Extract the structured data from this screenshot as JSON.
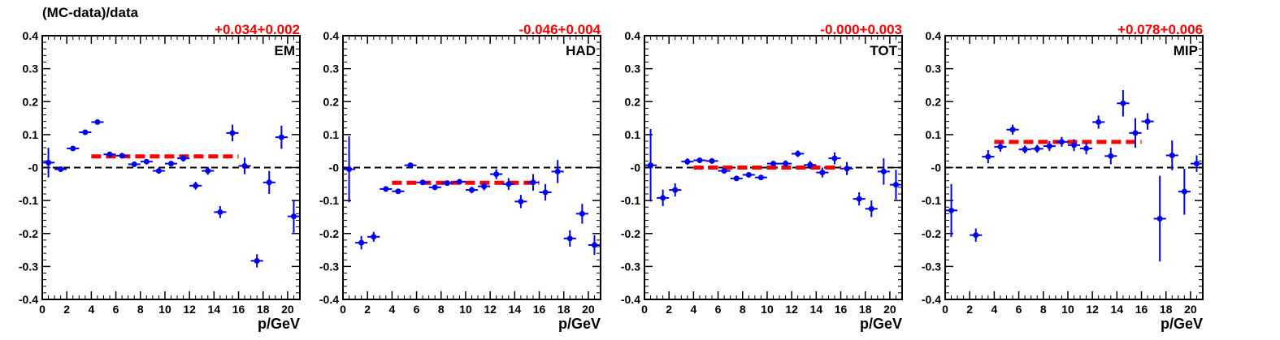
{
  "figure": {
    "ylabel": "(MC-data)/data"
  },
  "chart_data": [
    {
      "type": "scatter",
      "panel_label": "EM",
      "fit_text": "+0.034+0.002",
      "xlabel": "p/GeV",
      "ylabel": "(MC-data)/data",
      "xlim": [
        0,
        21
      ],
      "ylim": [
        -0.4,
        0.4
      ],
      "xticks": [
        0,
        2,
        4,
        6,
        8,
        10,
        12,
        14,
        16,
        18,
        20
      ],
      "yticks": [
        -0.4,
        -0.3,
        -0.2,
        -0.1,
        0,
        0.1,
        0.2,
        0.3,
        0.4
      ],
      "ytick_labels": [
        "-0.4",
        "-0.3",
        "-0.2",
        "-0.1",
        "-0",
        "0.1",
        "0.2",
        "0.3",
        "0.4"
      ],
      "reference_line": 0,
      "fit": {
        "value": 0.034,
        "x_range": [
          4,
          16
        ]
      },
      "points": [
        {
          "x": 0.5,
          "y": 0.015,
          "err": 0.045
        },
        {
          "x": 1.5,
          "y": -0.005,
          "err": 0.008
        },
        {
          "x": 2.5,
          "y": 0.058,
          "err": 0.006
        },
        {
          "x": 3.5,
          "y": 0.107,
          "err": 0.005
        },
        {
          "x": 4.5,
          "y": 0.138,
          "err": 0.004
        },
        {
          "x": 5.5,
          "y": 0.04,
          "err": 0.004
        },
        {
          "x": 6.5,
          "y": 0.036,
          "err": 0.004
        },
        {
          "x": 7.5,
          "y": 0.01,
          "err": 0.005
        },
        {
          "x": 8.5,
          "y": 0.018,
          "err": 0.005
        },
        {
          "x": 9.5,
          "y": -0.01,
          "err": 0.006
        },
        {
          "x": 10.5,
          "y": 0.012,
          "err": 0.008
        },
        {
          "x": 11.5,
          "y": 0.028,
          "err": 0.01
        },
        {
          "x": 12.5,
          "y": -0.055,
          "err": 0.012
        },
        {
          "x": 13.5,
          "y": -0.01,
          "err": 0.012
        },
        {
          "x": 14.5,
          "y": -0.135,
          "err": 0.018
        },
        {
          "x": 15.5,
          "y": 0.105,
          "err": 0.025
        },
        {
          "x": 16.5,
          "y": 0.005,
          "err": 0.025
        },
        {
          "x": 17.5,
          "y": -0.283,
          "err": 0.02
        },
        {
          "x": 18.5,
          "y": -0.045,
          "err": 0.035
        },
        {
          "x": 19.5,
          "y": 0.092,
          "err": 0.035
        },
        {
          "x": 20.5,
          "y": -0.148,
          "err": 0.05
        }
      ]
    },
    {
      "type": "scatter",
      "panel_label": "HAD",
      "fit_text": "-0.046+0.004",
      "xlabel": "p/GeV",
      "ylabel": "(MC-data)/data",
      "xlim": [
        0,
        21
      ],
      "ylim": [
        -0.4,
        0.4
      ],
      "xticks": [
        0,
        2,
        4,
        6,
        8,
        10,
        12,
        14,
        16,
        18,
        20
      ],
      "yticks": [
        -0.4,
        -0.3,
        -0.2,
        -0.1,
        0,
        0.1,
        0.2,
        0.3,
        0.4
      ],
      "ytick_labels": [
        "-0.4",
        "-0.3",
        "-0.2",
        "-0.1",
        "-0",
        "0.1",
        "0.2",
        "0.3",
        "0.4"
      ],
      "reference_line": 0,
      "fit": {
        "value": -0.046,
        "x_range": [
          4,
          16
        ]
      },
      "points": [
        {
          "x": 0.5,
          "y": -0.005,
          "err": 0.1
        },
        {
          "x": 1.5,
          "y": -0.228,
          "err": 0.02
        },
        {
          "x": 2.5,
          "y": -0.21,
          "err": 0.015
        },
        {
          "x": 3.5,
          "y": -0.065,
          "err": 0.008
        },
        {
          "x": 4.5,
          "y": -0.072,
          "err": 0.007
        },
        {
          "x": 5.5,
          "y": 0.007,
          "err": 0.005
        },
        {
          "x": 6.5,
          "y": -0.045,
          "err": 0.006
        },
        {
          "x": 7.5,
          "y": -0.06,
          "err": 0.006
        },
        {
          "x": 8.5,
          "y": -0.047,
          "err": 0.007
        },
        {
          "x": 9.5,
          "y": -0.043,
          "err": 0.008
        },
        {
          "x": 10.5,
          "y": -0.068,
          "err": 0.01
        },
        {
          "x": 11.5,
          "y": -0.057,
          "err": 0.012
        },
        {
          "x": 12.5,
          "y": -0.02,
          "err": 0.015
        },
        {
          "x": 13.5,
          "y": -0.05,
          "err": 0.018
        },
        {
          "x": 14.5,
          "y": -0.103,
          "err": 0.02
        },
        {
          "x": 15.5,
          "y": -0.045,
          "err": 0.025
        },
        {
          "x": 16.5,
          "y": -0.075,
          "err": 0.025
        },
        {
          "x": 17.5,
          "y": -0.012,
          "err": 0.035
        },
        {
          "x": 18.5,
          "y": -0.215,
          "err": 0.025
        },
        {
          "x": 19.5,
          "y": -0.14,
          "err": 0.03
        },
        {
          "x": 20.5,
          "y": -0.235,
          "err": 0.03
        }
      ]
    },
    {
      "type": "scatter",
      "panel_label": "TOT",
      "fit_text": "-0.000+0.003",
      "xlabel": "p/GeV",
      "ylabel": "(MC-data)/data",
      "xlim": [
        0,
        21
      ],
      "ylim": [
        -0.4,
        0.4
      ],
      "xticks": [
        0,
        2,
        4,
        6,
        8,
        10,
        12,
        14,
        16,
        18,
        20
      ],
      "yticks": [
        -0.4,
        -0.3,
        -0.2,
        -0.1,
        0,
        0.1,
        0.2,
        0.3,
        0.4
      ],
      "ytick_labels": [
        "-0.4",
        "-0.3",
        "-0.2",
        "-0.1",
        "-0",
        "0.1",
        "0.2",
        "0.3",
        "0.4"
      ],
      "reference_line": 0,
      "fit": {
        "value": 0.0,
        "x_range": [
          4,
          16
        ]
      },
      "points": [
        {
          "x": 0.5,
          "y": 0.007,
          "err": 0.11
        },
        {
          "x": 1.5,
          "y": -0.092,
          "err": 0.025
        },
        {
          "x": 2.5,
          "y": -0.068,
          "err": 0.02
        },
        {
          "x": 3.5,
          "y": 0.018,
          "err": 0.01
        },
        {
          "x": 4.5,
          "y": 0.022,
          "err": 0.008
        },
        {
          "x": 5.5,
          "y": 0.02,
          "err": 0.006
        },
        {
          "x": 6.5,
          "y": -0.01,
          "err": 0.006
        },
        {
          "x": 7.5,
          "y": -0.033,
          "err": 0.006
        },
        {
          "x": 8.5,
          "y": -0.022,
          "err": 0.006
        },
        {
          "x": 9.5,
          "y": -0.03,
          "err": 0.007
        },
        {
          "x": 10.5,
          "y": 0.012,
          "err": 0.008
        },
        {
          "x": 11.5,
          "y": 0.012,
          "err": 0.01
        },
        {
          "x": 12.5,
          "y": 0.042,
          "err": 0.01
        },
        {
          "x": 13.5,
          "y": 0.008,
          "err": 0.012
        },
        {
          "x": 14.5,
          "y": -0.015,
          "err": 0.015
        },
        {
          "x": 15.5,
          "y": 0.028,
          "err": 0.018
        },
        {
          "x": 16.5,
          "y": -0.003,
          "err": 0.02
        },
        {
          "x": 17.5,
          "y": -0.095,
          "err": 0.02
        },
        {
          "x": 18.5,
          "y": -0.125,
          "err": 0.025
        },
        {
          "x": 19.5,
          "y": -0.012,
          "err": 0.04
        },
        {
          "x": 20.5,
          "y": -0.052,
          "err": 0.045
        }
      ]
    },
    {
      "type": "scatter",
      "panel_label": "MIP",
      "fit_text": "+0.078+0.006",
      "xlabel": "p/GeV",
      "ylabel": "(MC-data)/data",
      "xlim": [
        0,
        21
      ],
      "ylim": [
        -0.4,
        0.4
      ],
      "xticks": [
        0,
        2,
        4,
        6,
        8,
        10,
        12,
        14,
        16,
        18,
        20
      ],
      "yticks": [
        -0.4,
        -0.3,
        -0.2,
        -0.1,
        0,
        0.1,
        0.2,
        0.3,
        0.4
      ],
      "ytick_labels": [
        "-0.4",
        "-0.3",
        "-0.2",
        "-0.1",
        "-0",
        "0.1",
        "0.2",
        "0.3",
        "0.4"
      ],
      "reference_line": 0,
      "fit": {
        "value": 0.078,
        "x_range": [
          4,
          16
        ]
      },
      "points": [
        {
          "x": 0.5,
          "y": -0.13,
          "err": 0.08
        },
        {
          "x": 2.5,
          "y": -0.205,
          "err": 0.02
        },
        {
          "x": 3.5,
          "y": 0.033,
          "err": 0.02
        },
        {
          "x": 4.5,
          "y": 0.063,
          "err": 0.015
        },
        {
          "x": 5.5,
          "y": 0.115,
          "err": 0.015
        },
        {
          "x": 6.5,
          "y": 0.055,
          "err": 0.012
        },
        {
          "x": 7.5,
          "y": 0.057,
          "err": 0.012
        },
        {
          "x": 8.5,
          "y": 0.065,
          "err": 0.015
        },
        {
          "x": 9.5,
          "y": 0.078,
          "err": 0.015
        },
        {
          "x": 10.5,
          "y": 0.068,
          "err": 0.018
        },
        {
          "x": 11.5,
          "y": 0.058,
          "err": 0.018
        },
        {
          "x": 12.5,
          "y": 0.138,
          "err": 0.02
        },
        {
          "x": 13.5,
          "y": 0.035,
          "err": 0.025
        },
        {
          "x": 14.5,
          "y": 0.195,
          "err": 0.04
        },
        {
          "x": 15.5,
          "y": 0.105,
          "err": 0.045
        },
        {
          "x": 16.5,
          "y": 0.14,
          "err": 0.025
        },
        {
          "x": 17.5,
          "y": -0.155,
          "err": 0.13
        },
        {
          "x": 18.5,
          "y": 0.037,
          "err": 0.045
        },
        {
          "x": 19.5,
          "y": -0.073,
          "err": 0.07
        },
        {
          "x": 20.5,
          "y": 0.012,
          "err": 0.025
        }
      ]
    }
  ]
}
